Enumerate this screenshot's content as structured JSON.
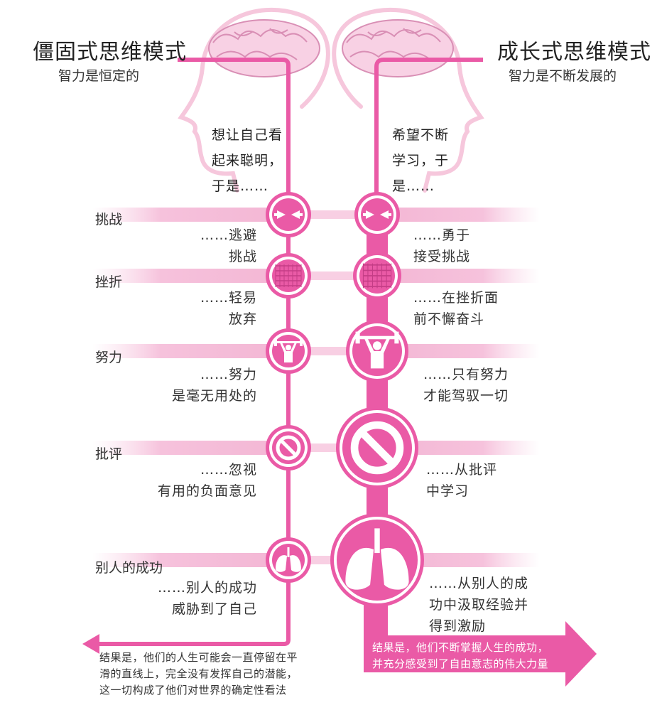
{
  "fixed": {
    "title": "僵固式思维模式",
    "subtitle": "智力是恒定的",
    "intro": [
      "想让自己看",
      "起来聪明，",
      "于是……"
    ],
    "conclusion": [
      "结果是，他们的人生可能会一直停留在平",
      "滑的直线上，完全没有发挥自己的潜能，",
      "这一切构成了他们对世界的确定性看法"
    ]
  },
  "growth": {
    "title": "成长式思维模式",
    "subtitle": "智力是不断发展的",
    "intro": [
      "希望不断",
      "学习，于",
      "是……"
    ],
    "conclusion": [
      "结果是，他们不断掌握人生的成功，",
      "并充分感受到了自由意志的伟大力量"
    ]
  },
  "rows": [
    {
      "label": "挑战",
      "icon": "arrows-icon",
      "fixed": [
        "……逃避",
        "挑战"
      ],
      "growth": [
        "……勇于",
        "接受挑战"
      ]
    },
    {
      "label": "挫折",
      "icon": "brick-wall-icon",
      "fixed": [
        "……轻易",
        "放弃"
      ],
      "growth": [
        "……在挫折面",
        "前不懈奋斗"
      ]
    },
    {
      "label": "努力",
      "icon": "weightlifter-icon",
      "fixed": [
        "……努力",
        "是毫无用处的"
      ],
      "growth": [
        "……只有努力",
        "才能驾驭一切"
      ]
    },
    {
      "label": "批评",
      "icon": "no-sign-icon",
      "fixed": [
        "……忽视",
        "有用的负面意见"
      ],
      "growth": [
        "……从批评",
        "中学习"
      ]
    },
    {
      "label": "别人的成功",
      "icon": "lungs-icon",
      "fixed": [
        "……别人的成功",
        "威胁到了自己"
      ],
      "growth": [
        "……从别人的成",
        "功中汲取经验并",
        "得到激励"
      ]
    }
  ],
  "colors": {
    "pink": "#ea5aa6",
    "light_pink": "#f8cfe3",
    "head_outline": "#f6c7dc"
  }
}
